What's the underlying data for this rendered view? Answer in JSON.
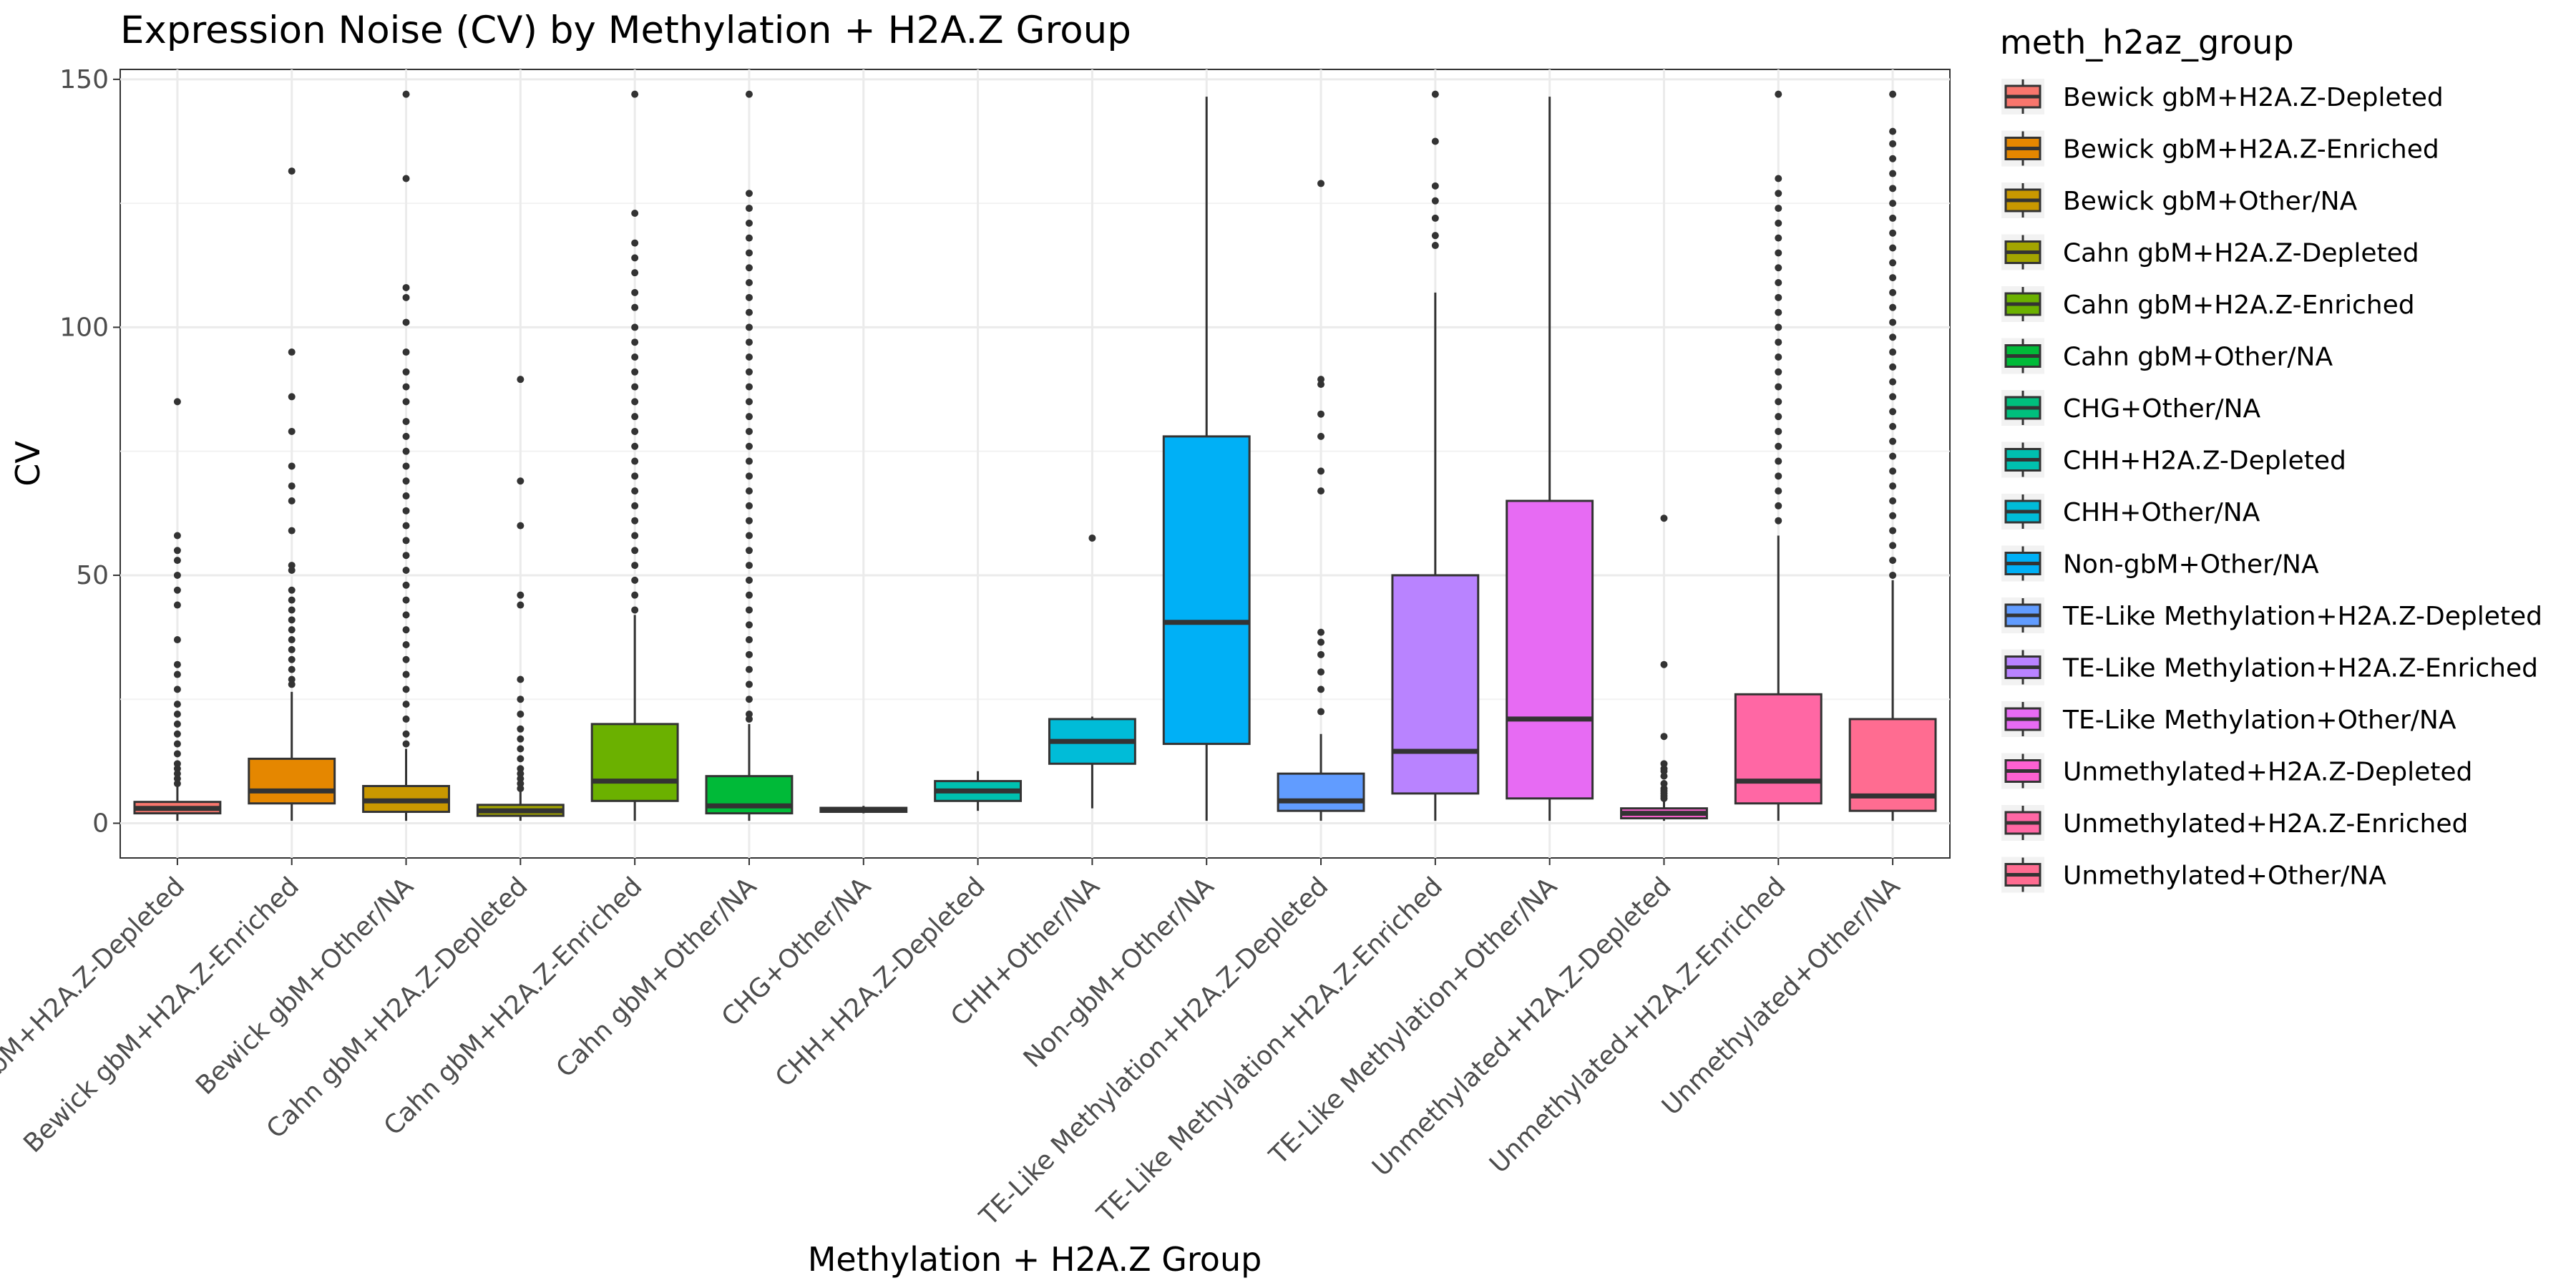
{
  "chart_data": {
    "type": "box",
    "title": "Expression Noise (CV) by Methylation + H2A.Z Group",
    "xlabel": "Methylation + H2A.Z Group",
    "ylabel": "CV",
    "ylim": [
      -7,
      152
    ],
    "yticks": [
      0,
      50,
      100,
      150
    ],
    "grid": true,
    "legend": {
      "title": "meth_h2az_group",
      "placement": "right"
    },
    "categories": [
      "Bewick gbM+H2A.Z-Depleted",
      "Bewick gbM+H2A.Z-Enriched",
      "Bewick gbM+Other/NA",
      "Cahn gbM+H2A.Z-Depleted",
      "Cahn gbM+H2A.Z-Enriched",
      "Cahn gbM+Other/NA",
      "CHG+Other/NA",
      "CHH+H2A.Z-Depleted",
      "CHH+Other/NA",
      "Non-gbM+Other/NA",
      "TE-Like Methylation+H2A.Z-Depleted",
      "TE-Like Methylation+H2A.Z-Enriched",
      "TE-Like Methylation+Other/NA",
      "Unmethylated+H2A.Z-Depleted",
      "Unmethylated+H2A.Z-Enriched",
      "Unmethylated+Other/NA"
    ],
    "colors": [
      "#F8766D",
      "#E58700",
      "#C99800",
      "#A3A500",
      "#6BB100",
      "#00BA38",
      "#00BF7D",
      "#00C0AF",
      "#00BCD8",
      "#00B0F6",
      "#619CFF",
      "#B983FF",
      "#E76BF3",
      "#FD61D1",
      "#FF67A4",
      "#FF6C91"
    ],
    "series": [
      {
        "category": "Bewick gbM+H2A.Z-Depleted",
        "min": 0.5,
        "q1": 2.0,
        "median": 3.0,
        "q3": 4.3,
        "max": 7.5,
        "outliers": [
          85,
          58,
          55,
          53,
          50,
          47,
          44,
          37,
          32,
          30,
          27,
          24,
          22,
          20,
          18,
          16,
          14,
          12,
          11,
          10,
          9,
          8
        ]
      },
      {
        "category": "Bewick gbM+H2A.Z-Enriched",
        "min": 0.5,
        "q1": 4.0,
        "median": 6.5,
        "q3": 13.0,
        "max": 26.5,
        "outliers": [
          131.5,
          95,
          86,
          79,
          72,
          68,
          65,
          59,
          52,
          51,
          47,
          45,
          43,
          41,
          39,
          37,
          35,
          33,
          31,
          29,
          28
        ]
      },
      {
        "category": "Bewick gbM+Other/NA",
        "min": 0.5,
        "q1": 2.3,
        "median": 4.5,
        "q3": 7.5,
        "max": 15.0,
        "outliers": [
          147,
          130,
          108,
          106,
          101,
          95,
          91,
          88,
          85,
          81,
          78,
          75,
          72,
          69,
          66,
          63,
          60,
          57,
          54,
          51,
          48,
          45,
          42,
          39,
          36,
          33,
          30,
          27,
          24,
          21,
          18,
          16
        ]
      },
      {
        "category": "Cahn gbM+H2A.Z-Depleted",
        "min": 0.5,
        "q1": 1.5,
        "median": 2.5,
        "q3": 3.7,
        "max": 6.5,
        "outliers": [
          89.5,
          69,
          60,
          46,
          44,
          29,
          25,
          22,
          19,
          17,
          15,
          13,
          11,
          10,
          9,
          8,
          7
        ]
      },
      {
        "category": "Cahn gbM+H2A.Z-Enriched",
        "min": 0.5,
        "q1": 4.5,
        "median": 8.5,
        "q3": 20.0,
        "max": 42.0,
        "outliers": [
          147,
          123,
          117,
          114,
          111,
          107,
          104,
          100,
          97,
          94,
          91,
          88,
          85,
          82,
          79,
          76,
          73,
          70,
          67,
          64,
          61,
          58,
          55,
          52,
          49,
          46,
          43
        ]
      },
      {
        "category": "Cahn gbM+Other/NA",
        "min": 0.5,
        "q1": 2.0,
        "median": 3.5,
        "q3": 9.5,
        "max": 20.0,
        "outliers": [
          147,
          127,
          124,
          121,
          118,
          115,
          112,
          109,
          106,
          103,
          100,
          97,
          94,
          91,
          88,
          85,
          82,
          79,
          76,
          73,
          70,
          67,
          64,
          61,
          58,
          55,
          52,
          49,
          46,
          43,
          40,
          37,
          34,
          31,
          28,
          25,
          22,
          21
        ]
      },
      {
        "category": "CHG+Other/NA",
        "min": 2.0,
        "q1": 2.3,
        "median": 2.7,
        "q3": 3.1,
        "max": 3.5,
        "outliers": []
      },
      {
        "category": "CHH+H2A.Z-Depleted",
        "min": 2.5,
        "q1": 4.5,
        "median": 6.5,
        "q3": 8.5,
        "max": 10.5,
        "outliers": []
      },
      {
        "category": "CHH+Other/NA",
        "min": 3.0,
        "q1": 12.0,
        "median": 16.5,
        "q3": 21.0,
        "max": 21.5,
        "outliers": [
          57.5
        ]
      },
      {
        "category": "Non-gbM+Other/NA",
        "min": 0.5,
        "q1": 16.0,
        "median": 40.5,
        "q3": 78.0,
        "max": 146.5,
        "outliers": []
      },
      {
        "category": "TE-Like Methylation+H2A.Z-Depleted",
        "min": 0.5,
        "q1": 2.5,
        "median": 4.5,
        "q3": 10.0,
        "max": 18.0,
        "outliers": [
          129,
          89.5,
          88.5,
          82.5,
          78,
          71,
          67,
          38.5,
          36.5,
          34,
          30.5,
          27,
          22.5
        ]
      },
      {
        "category": "TE-Like Methylation+H2A.Z-Enriched",
        "min": 0.5,
        "q1": 6.0,
        "median": 14.5,
        "q3": 50.0,
        "max": 107.0,
        "outliers": [
          147,
          137.5,
          128.5,
          125.5,
          122,
          118.5,
          116.5
        ]
      },
      {
        "category": "TE-Like Methylation+Other/NA",
        "min": 0.5,
        "q1": 5.0,
        "median": 21.0,
        "q3": 65.0,
        "max": 146.5,
        "outliers": []
      },
      {
        "category": "Unmethylated+H2A.Z-Depleted",
        "min": 0.5,
        "q1": 1.0,
        "median": 2.0,
        "q3": 3.0,
        "max": 4.5,
        "outliers": [
          61.5,
          32,
          17.5,
          12,
          11,
          10.5,
          9.5,
          8,
          7,
          6.5,
          6,
          5.5,
          5
        ]
      },
      {
        "category": "Unmethylated+H2A.Z-Enriched",
        "min": 0.5,
        "q1": 4.0,
        "median": 8.5,
        "q3": 26.0,
        "max": 58.0,
        "outliers": [
          147,
          130,
          127,
          124,
          121,
          118,
          115,
          112,
          109,
          106,
          103,
          100,
          97,
          94,
          91,
          88,
          85,
          82,
          79,
          76,
          73,
          70,
          67,
          64,
          61
        ]
      },
      {
        "category": "Unmethylated+Other/NA",
        "min": 0.5,
        "q1": 2.5,
        "median": 5.5,
        "q3": 21.0,
        "max": 49.0,
        "outliers": [
          147,
          139.5,
          137,
          134,
          131,
          128,
          125,
          122,
          119,
          116,
          113,
          110,
          107,
          104,
          101,
          98,
          95,
          92,
          89,
          86,
          83,
          80,
          77,
          74,
          71,
          68,
          65,
          62,
          59,
          56,
          53,
          50
        ]
      }
    ]
  }
}
